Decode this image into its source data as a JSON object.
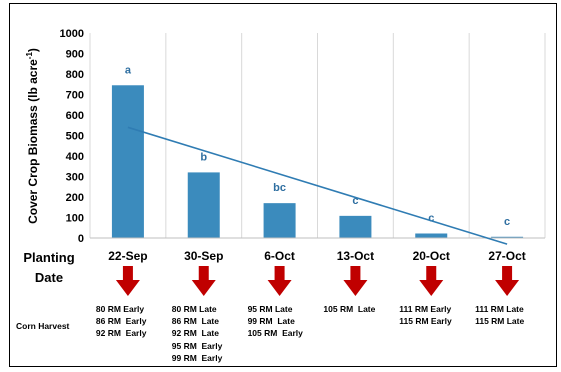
{
  "chart_data": {
    "type": "bar",
    "ylabel": "Cover Crop Biomass (lb acre⁻¹)",
    "ylabel_main": "Cover Crop Biomass (lb acre",
    "ylabel_sup": "-1",
    "ylabel_close": ")",
    "xlabel": "Planting Date",
    "xlabel_line1": "Planting",
    "xlabel_line2": "Date",
    "ylim": [
      0,
      1000
    ],
    "yticks": [
      0,
      100,
      200,
      300,
      400,
      500,
      600,
      700,
      800,
      900,
      1000
    ],
    "categories": [
      "22-Sep",
      "30-Sep",
      "6-Oct",
      "13-Oct",
      "20-Oct",
      "27-Oct"
    ],
    "values": [
      745,
      320,
      170,
      108,
      22,
      6
    ],
    "significance_letters": [
      "a",
      "b",
      "bc",
      "c",
      "c",
      "c"
    ],
    "trendline": {
      "start": 540,
      "end": -30
    },
    "grid": true,
    "colors": {
      "bar": "#3b8bbd",
      "trendline": "#2f7cb3",
      "letters": "#2f6fa1",
      "arrow": "#c00000"
    }
  },
  "corn_harvest": {
    "label": "Corn Harvest",
    "groups": [
      [
        "80 RM Early",
        "86 RM  Early",
        "92 RM  Early"
      ],
      [
        "80 RM Late",
        "86 RM  Late",
        "92 RM  Late",
        "95 RM  Early",
        "99 RM  Early"
      ],
      [
        "95 RM Late",
        "99 RM  Late",
        "105 RM  Early"
      ],
      [
        "105 RM  Late"
      ],
      [
        "111 RM Early",
        "115 RM Early"
      ],
      [
        "111 RM Late",
        "115 RM Late"
      ]
    ]
  }
}
